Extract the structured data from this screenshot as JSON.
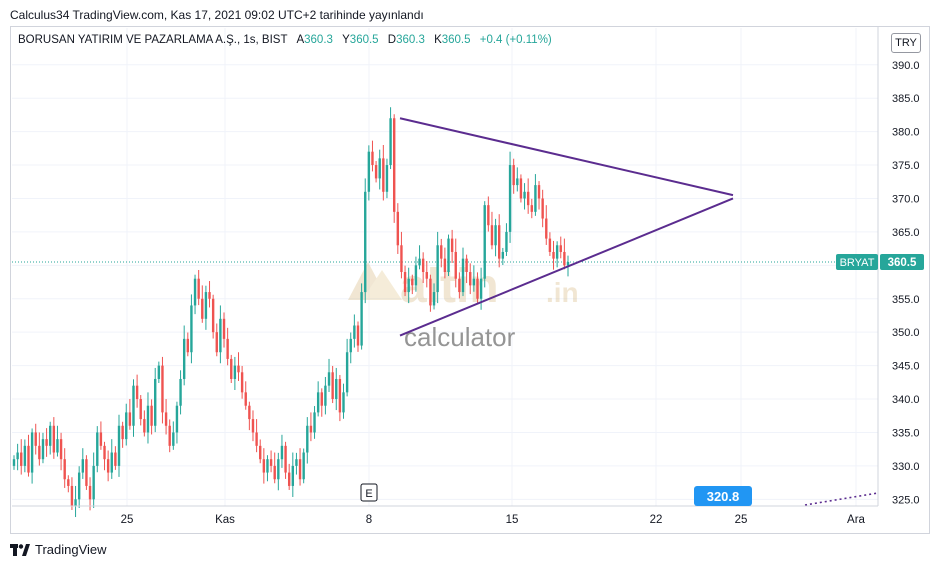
{
  "header": {
    "published": "Calculus34 TradingView.com, Kas 17, 2021 09:02 UTC+2 tarihinde yayınlandı"
  },
  "legend": {
    "symbol": "BORUSAN YATIRIM VE PAZARLAMA A.Ş., 1s, BIST",
    "open_label": "A",
    "open": "360.3",
    "high_label": "Y",
    "high": "360.5",
    "low_label": "D",
    "low": "360.3",
    "close_label": "K",
    "close": "360.5",
    "change": "+0.4 (+0.11%)"
  },
  "currency_button": "TRY",
  "watermark": {
    "brand": "altin",
    "suffix": ".in",
    "sub": "calculator"
  },
  "footer": {
    "brand": "TradingView"
  },
  "event_marker": "E",
  "colors": {
    "up": "#26a69a",
    "down": "#ef5350",
    "trendline": "#5b2c8f",
    "grid": "#f0f3fa",
    "price_label": "#26a69a",
    "alert_label": "#2196f3"
  },
  "chart_data": {
    "type": "candlestick",
    "ylim": [
      324,
      395.5
    ],
    "y_ticks": [
      325.0,
      330.0,
      335.0,
      340.0,
      345.0,
      350.0,
      355.0,
      360.0,
      365.0,
      370.0,
      375.0,
      380.0,
      385.0,
      390.0
    ],
    "y_tick_labels": [
      "325.0",
      "330.0",
      "335.0",
      "340.0",
      "345.0",
      "350.0",
      "355.0",
      "360.0",
      "365.0",
      "370.0",
      "375.0",
      "380.0",
      "385.0",
      "390.0"
    ],
    "x_tick_labels": [
      "25",
      "Kas",
      "8",
      "15",
      "22",
      "25",
      "Ara"
    ],
    "last_price": {
      "symbol": "BRYAT",
      "value": "360.5"
    },
    "alert_price": {
      "value": "320.8"
    },
    "closes": [
      331,
      332,
      330,
      333,
      329,
      335,
      333,
      331,
      334,
      333,
      336,
      332,
      334,
      331,
      328,
      327,
      324,
      325,
      329,
      331,
      327,
      325,
      330,
      335,
      333,
      331,
      329,
      332,
      330,
      336,
      334,
      338,
      336,
      342,
      340,
      337,
      335,
      339,
      336,
      343,
      345,
      338,
      336,
      333,
      335,
      339,
      343,
      349,
      347,
      354,
      358,
      355,
      352,
      356,
      355,
      350,
      347,
      352,
      349,
      346,
      343,
      345,
      344,
      341,
      339,
      337,
      335,
      333,
      331,
      329,
      331,
      330,
      328,
      331,
      333,
      329,
      327,
      330,
      331,
      328,
      332,
      336,
      335,
      338,
      341,
      339,
      342,
      344,
      340,
      343,
      338,
      341,
      347,
      349,
      351,
      348,
      356,
      371,
      377,
      375,
      373,
      376,
      371,
      375,
      382,
      368,
      363,
      359,
      356,
      358,
      357,
      360,
      361,
      359,
      358,
      354,
      356,
      363,
      361,
      359,
      364,
      362,
      358,
      356,
      361,
      359,
      357,
      358,
      355,
      358,
      369,
      366,
      363,
      366,
      361,
      362,
      365,
      375,
      372,
      373,
      370,
      371,
      369,
      368,
      372,
      370,
      367,
      364,
      362,
      361,
      363,
      362,
      360,
      360.5
    ],
    "trendlines": [
      {
        "from": {
          "date": "Kas 9",
          "value": 382
        },
        "to": {
          "date": "Kas 25",
          "value": 370.5
        }
      },
      {
        "from": {
          "date": "Kas 9",
          "value": 349.5
        },
        "to": {
          "date": "Kas 25",
          "value": 370
        }
      }
    ]
  }
}
